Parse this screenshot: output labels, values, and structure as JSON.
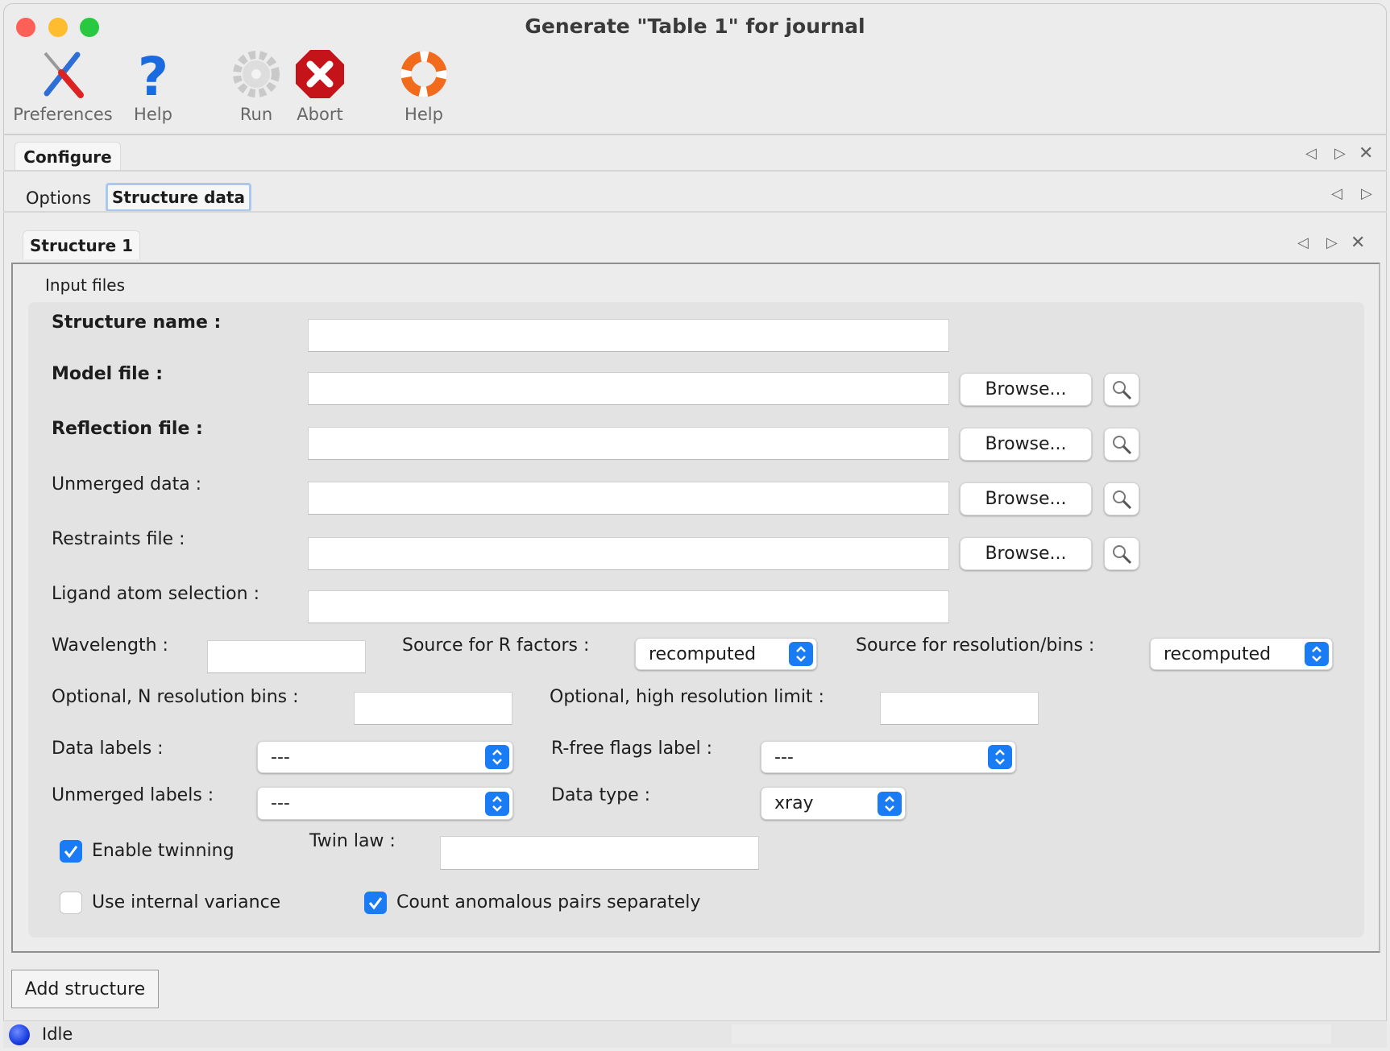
{
  "window": {
    "title": "Generate \"Table 1\" for journal"
  },
  "toolbar": [
    {
      "label": "Preferences",
      "icon": "tools-icon"
    },
    {
      "label": "Help",
      "icon": "question-icon"
    },
    {
      "label": "Run",
      "icon": "gear-icon"
    },
    {
      "label": "Abort",
      "icon": "stop-icon"
    },
    {
      "label": "Help",
      "icon": "lifebuoy-icon"
    }
  ],
  "tabs": {
    "outer": "Configure",
    "inner": [
      "Options",
      "Structure data"
    ],
    "structure": "Structure 1"
  },
  "form": {
    "group_title": "Input files",
    "structure_name": "Structure name :",
    "model_file": "Model file :",
    "reflection_file": "Reflection file :",
    "unmerged_data": "Unmerged data :",
    "restraints_file": "Restraints file :",
    "ligand_selection": "Ligand atom selection :",
    "browse": "Browse...",
    "wavelength": "Wavelength :",
    "source_r": "Source for R factors :",
    "source_r_value": "recomputed",
    "source_res": "Source for resolution/bins :",
    "source_res_value": "recomputed",
    "n_bins": "Optional, N resolution bins :",
    "high_res": "Optional, high resolution limit :",
    "data_labels": "Data labels :",
    "data_labels_value": "---",
    "rfree_label": "R-free flags label :",
    "rfree_value": "---",
    "unmerged_labels": "Unmerged labels :",
    "unmerged_labels_value": "---",
    "data_type": "Data type :",
    "data_type_value": "xray",
    "enable_twinning": "Enable twinning",
    "enable_twinning_checked": true,
    "twin_law": "Twin law :",
    "internal_variance": "Use internal variance",
    "internal_variance_checked": false,
    "count_anomalous": "Count anomalous pairs separately",
    "count_anomalous_checked": true
  },
  "add_structure": "Add structure",
  "status": {
    "text": "Idle",
    "color": "#1a3fe0"
  },
  "colors": {
    "accent": "#1a7cf5"
  }
}
